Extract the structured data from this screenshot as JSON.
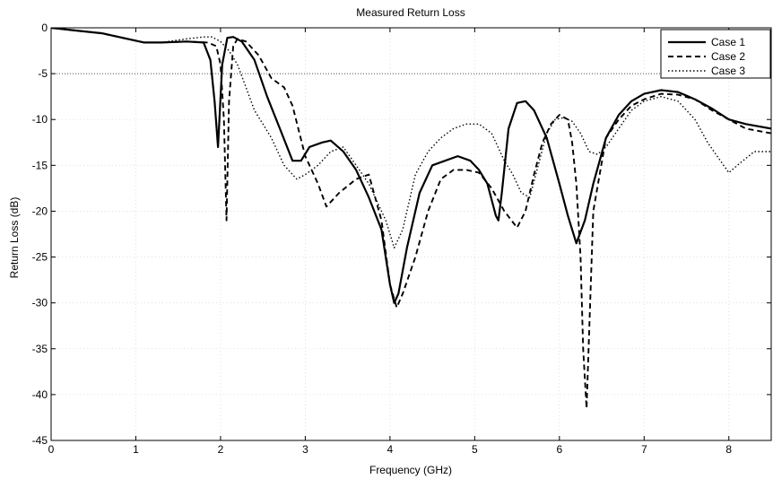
{
  "chart_data": {
    "type": "line",
    "title": "Measured Return Loss",
    "xlabel": "Frequency (GHz)",
    "ylabel": "Return Loss (dB)",
    "xlim": [
      0,
      8.5
    ],
    "ylim": [
      -45,
      0
    ],
    "xticks": [
      0,
      1,
      2,
      3,
      4,
      5,
      6,
      7,
      8
    ],
    "xtick_labels": [
      "0",
      "1",
      "2",
      "3",
      "4",
      "5",
      "6",
      "7",
      "8"
    ],
    "yticks": [
      0,
      -5,
      -10,
      -15,
      -20,
      -25,
      -30,
      -35,
      -40,
      -45
    ],
    "ytick_labels": [
      "0",
      "-5",
      "-10",
      "-15",
      "-20",
      "-25",
      "-30",
      "-35",
      "-40",
      "-45"
    ],
    "grid": true,
    "legend_position": "top-right",
    "series": [
      {
        "name": "Case 1",
        "style": "solid",
        "color": "#000000",
        "x": [
          0,
          0.3,
          0.6,
          0.9,
          1.1,
          1.3,
          1.6,
          1.8,
          1.88,
          1.93,
          1.97,
          2.02,
          2.08,
          2.15,
          2.25,
          2.4,
          2.55,
          2.7,
          2.85,
          2.95,
          3.05,
          3.2,
          3.3,
          3.45,
          3.6,
          3.75,
          3.9,
          4.0,
          4.05,
          4.1,
          4.2,
          4.35,
          4.5,
          4.65,
          4.8,
          4.95,
          5.05,
          5.15,
          5.25,
          5.28,
          5.32,
          5.4,
          5.5,
          5.6,
          5.7,
          5.85,
          6.0,
          6.1,
          6.2,
          6.3,
          6.4,
          6.55,
          6.7,
          6.85,
          7.0,
          7.2,
          7.4,
          7.6,
          7.8,
          8.0,
          8.2,
          8.5
        ],
        "y": [
          0,
          -0.3,
          -0.6,
          -1.2,
          -1.6,
          -1.6,
          -1.5,
          -1.6,
          -3.5,
          -8.0,
          -13.0,
          -4.0,
          -1.1,
          -1.0,
          -1.5,
          -3.5,
          -7.5,
          -11.0,
          -14.5,
          -14.5,
          -13.0,
          -12.5,
          -12.3,
          -13.5,
          -15.5,
          -18.5,
          -22.0,
          -28.0,
          -30.0,
          -29.0,
          -24.0,
          -18.0,
          -15.0,
          -14.5,
          -14.0,
          -14.5,
          -15.5,
          -17.0,
          -20.5,
          -21.0,
          -18.0,
          -11.0,
          -8.2,
          -8.0,
          -9.0,
          -12.0,
          -17.0,
          -20.5,
          -23.5,
          -21.0,
          -17.0,
          -12.0,
          -9.5,
          -8.0,
          -7.2,
          -6.8,
          -7.0,
          -7.8,
          -8.8,
          -10.0,
          -10.5,
          -11.0
        ]
      },
      {
        "name": "Case 2",
        "style": "dashed",
        "color": "#000000",
        "x": [
          0,
          0.3,
          0.6,
          0.9,
          1.1,
          1.3,
          1.6,
          1.85,
          1.95,
          2.0,
          2.04,
          2.07,
          2.1,
          2.15,
          2.2,
          2.3,
          2.45,
          2.6,
          2.75,
          2.85,
          3.0,
          3.15,
          3.25,
          3.4,
          3.6,
          3.75,
          3.9,
          4.0,
          4.08,
          4.15,
          4.3,
          4.45,
          4.6,
          4.75,
          4.9,
          5.05,
          5.2,
          5.35,
          5.5,
          5.6,
          5.7,
          5.8,
          5.9,
          6.0,
          6.1,
          6.15,
          6.2,
          6.25,
          6.28,
          6.32,
          6.4,
          6.55,
          6.7,
          6.85,
          7.0,
          7.2,
          7.4,
          7.6,
          7.8,
          8.0,
          8.2,
          8.5
        ],
        "y": [
          0,
          -0.3,
          -0.6,
          -1.2,
          -1.6,
          -1.6,
          -1.5,
          -1.6,
          -2.0,
          -4.0,
          -10.0,
          -21.0,
          -8.0,
          -2.0,
          -1.2,
          -1.5,
          -3.0,
          -5.5,
          -6.5,
          -8.5,
          -14.0,
          -17.0,
          -19.5,
          -18.0,
          -16.5,
          -16.0,
          -21.0,
          -28.0,
          -30.5,
          -29.0,
          -25.0,
          -20.0,
          -16.5,
          -15.5,
          -15.5,
          -15.8,
          -17.5,
          -20.0,
          -21.8,
          -20.0,
          -16.0,
          -12.5,
          -10.5,
          -9.5,
          -10.0,
          -12.5,
          -17.0,
          -25.0,
          -35.0,
          -41.5,
          -20.0,
          -12.0,
          -10.0,
          -8.5,
          -7.8,
          -7.2,
          -7.3,
          -7.8,
          -9.0,
          -10.0,
          -11.0,
          -11.5
        ]
      },
      {
        "name": "Case 3",
        "style": "dotted",
        "color": "#000000",
        "x": [
          0,
          0.3,
          0.6,
          0.9,
          1.1,
          1.3,
          1.6,
          1.8,
          1.9,
          2.0,
          2.1,
          2.2,
          2.3,
          2.4,
          2.5,
          2.6,
          2.75,
          2.9,
          3.0,
          3.15,
          3.3,
          3.45,
          3.6,
          3.75,
          3.85,
          3.95,
          4.0,
          4.05,
          4.15,
          4.3,
          4.45,
          4.6,
          4.75,
          4.9,
          5.05,
          5.2,
          5.35,
          5.45,
          5.55,
          5.65,
          5.75,
          5.85,
          5.95,
          6.05,
          6.15,
          6.25,
          6.35,
          6.45,
          6.55,
          6.7,
          6.85,
          7.0,
          7.2,
          7.4,
          7.6,
          7.75,
          7.9,
          8.0,
          8.1,
          8.3,
          8.5
        ],
        "y": [
          0,
          -0.3,
          -0.6,
          -1.2,
          -1.6,
          -1.6,
          -1.2,
          -1.0,
          -1.0,
          -1.5,
          -2.5,
          -4.0,
          -6.5,
          -9.0,
          -10.5,
          -12.0,
          -15.0,
          -16.5,
          -16.0,
          -15.0,
          -13.5,
          -13.0,
          -15.0,
          -17.0,
          -19.0,
          -21.0,
          -22.5,
          -24.0,
          -22.0,
          -16.0,
          -13.5,
          -12.0,
          -11.0,
          -10.5,
          -10.5,
          -11.5,
          -14.5,
          -16.0,
          -18.0,
          -18.5,
          -15.0,
          -11.5,
          -10.0,
          -9.8,
          -10.2,
          -11.5,
          -13.5,
          -13.8,
          -13.0,
          -11.0,
          -9.0,
          -8.0,
          -7.5,
          -8.0,
          -10.0,
          -12.5,
          -14.5,
          -15.8,
          -15.0,
          -13.5,
          -13.5
        ]
      }
    ],
    "reference_line": {
      "y": -5,
      "style": "dotted"
    }
  }
}
